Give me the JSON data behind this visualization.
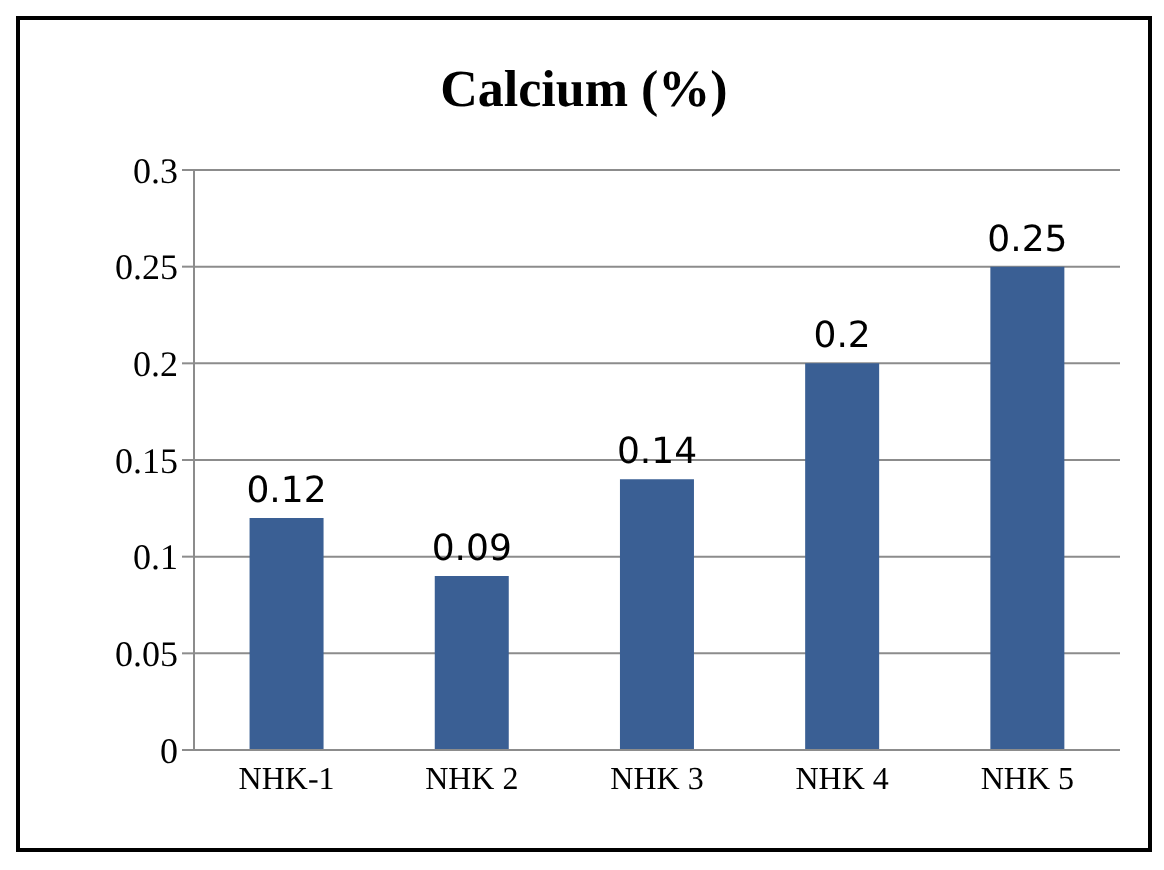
{
  "chart_data": {
    "type": "bar",
    "title": "Calcium (%)",
    "categories": [
      "NHK-1",
      "NHK 2",
      "NHK 3",
      "NHK 4",
      "NHK 5"
    ],
    "values": [
      0.12,
      0.09,
      0.14,
      0.2,
      0.25
    ],
    "color": "#3a5f94",
    "ylim": [
      0,
      0.3
    ],
    "yticks": [
      0,
      0.05,
      0.1,
      0.15,
      0.2,
      0.25,
      0.3
    ],
    "grid": "y",
    "data_labels": true
  }
}
